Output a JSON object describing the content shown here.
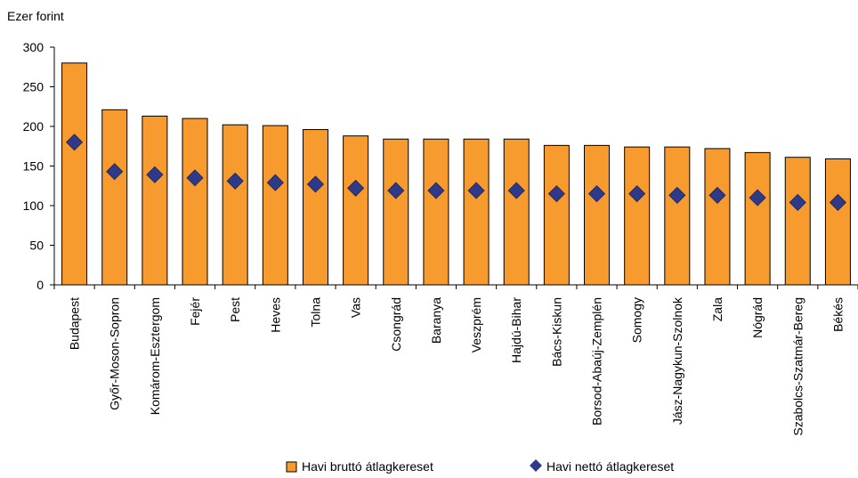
{
  "chart_data": {
    "type": "bar",
    "ylabel": "Ezer forint",
    "ylim": [
      0,
      300
    ],
    "yticks": [
      0,
      50,
      100,
      150,
      200,
      250,
      300
    ],
    "grid": false,
    "legend_position": "bottom",
    "categories": [
      "Budapest",
      "Győr-Moson-Sopron",
      "Komárom-Esztergom",
      "Fejér",
      "Pest",
      "Heves",
      "Tolna",
      "Vas",
      "Csongrád",
      "Baranya",
      "Veszprém",
      "Hajdú-Bihar",
      "Bács-Kiskun",
      "Borsod-Abaúj-Zemplén",
      "Somogy",
      "Jász-Nagykun-Szolnok",
      "Zala",
      "Nógrád",
      "Szabolcs-Szatmár-Bereg",
      "Békés"
    ],
    "series": [
      {
        "name": "Havi bruttó átlagkereset",
        "kind": "bar",
        "color": "#F79B2E",
        "values": [
          280,
          221,
          213,
          210,
          202,
          201,
          196,
          188,
          184,
          184,
          184,
          184,
          176,
          176,
          174,
          174,
          172,
          167,
          161,
          159
        ]
      },
      {
        "name": "Havi nettó átlagkereset",
        "kind": "marker",
        "color": "#2E3A87",
        "values": [
          180,
          143,
          139,
          135,
          131,
          129,
          127,
          122,
          119,
          119,
          119,
          119,
          115,
          115,
          115,
          113,
          113,
          110,
          104,
          104
        ]
      }
    ]
  }
}
